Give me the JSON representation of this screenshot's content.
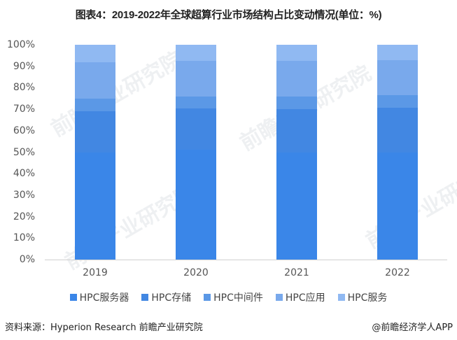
{
  "title": "图表4：2019-2022年全球超算行业市场结构占比变动情况(单位：%)",
  "chart_data": {
    "type": "bar",
    "stacked": true,
    "title": "图表4：2019-2022年全球超算行业市场结构占比变动情况(单位：%)",
    "xlabel": "",
    "ylabel": "",
    "ylim": [
      0,
      100
    ],
    "yticks": [
      "0%",
      "10%",
      "20%",
      "30%",
      "40%",
      "50%",
      "60%",
      "70%",
      "80%",
      "90%",
      "100%"
    ],
    "categories": [
      "2019",
      "2020",
      "2021",
      "2022"
    ],
    "series": [
      {
        "name": "HPC服务器",
        "color": "#3a86e8",
        "values": [
          49.8,
          51.0,
          50.0,
          50.0
        ]
      },
      {
        "name": "HPC存储",
        "color": "#4287e2",
        "values": [
          19.2,
          19.4,
          20.0,
          20.6
        ]
      },
      {
        "name": "HPC中间件",
        "color": "#5b98e6",
        "values": [
          6.0,
          5.6,
          6.0,
          5.9
        ]
      },
      {
        "name": "HPC应用",
        "color": "#79a9ec",
        "values": [
          17.0,
          16.4,
          16.5,
          16.3
        ]
      },
      {
        "name": "HPC服务",
        "color": "#90b9f2",
        "values": [
          8.0,
          7.6,
          7.5,
          7.2
        ]
      }
    ],
    "grid": false,
    "legend_position": "bottom"
  },
  "footer": {
    "source": "资料来源：Hyperion Research 前瞻产业研究院",
    "credit": "@前瞻经济学人APP"
  },
  "watermark": "前瞻产业研究院"
}
